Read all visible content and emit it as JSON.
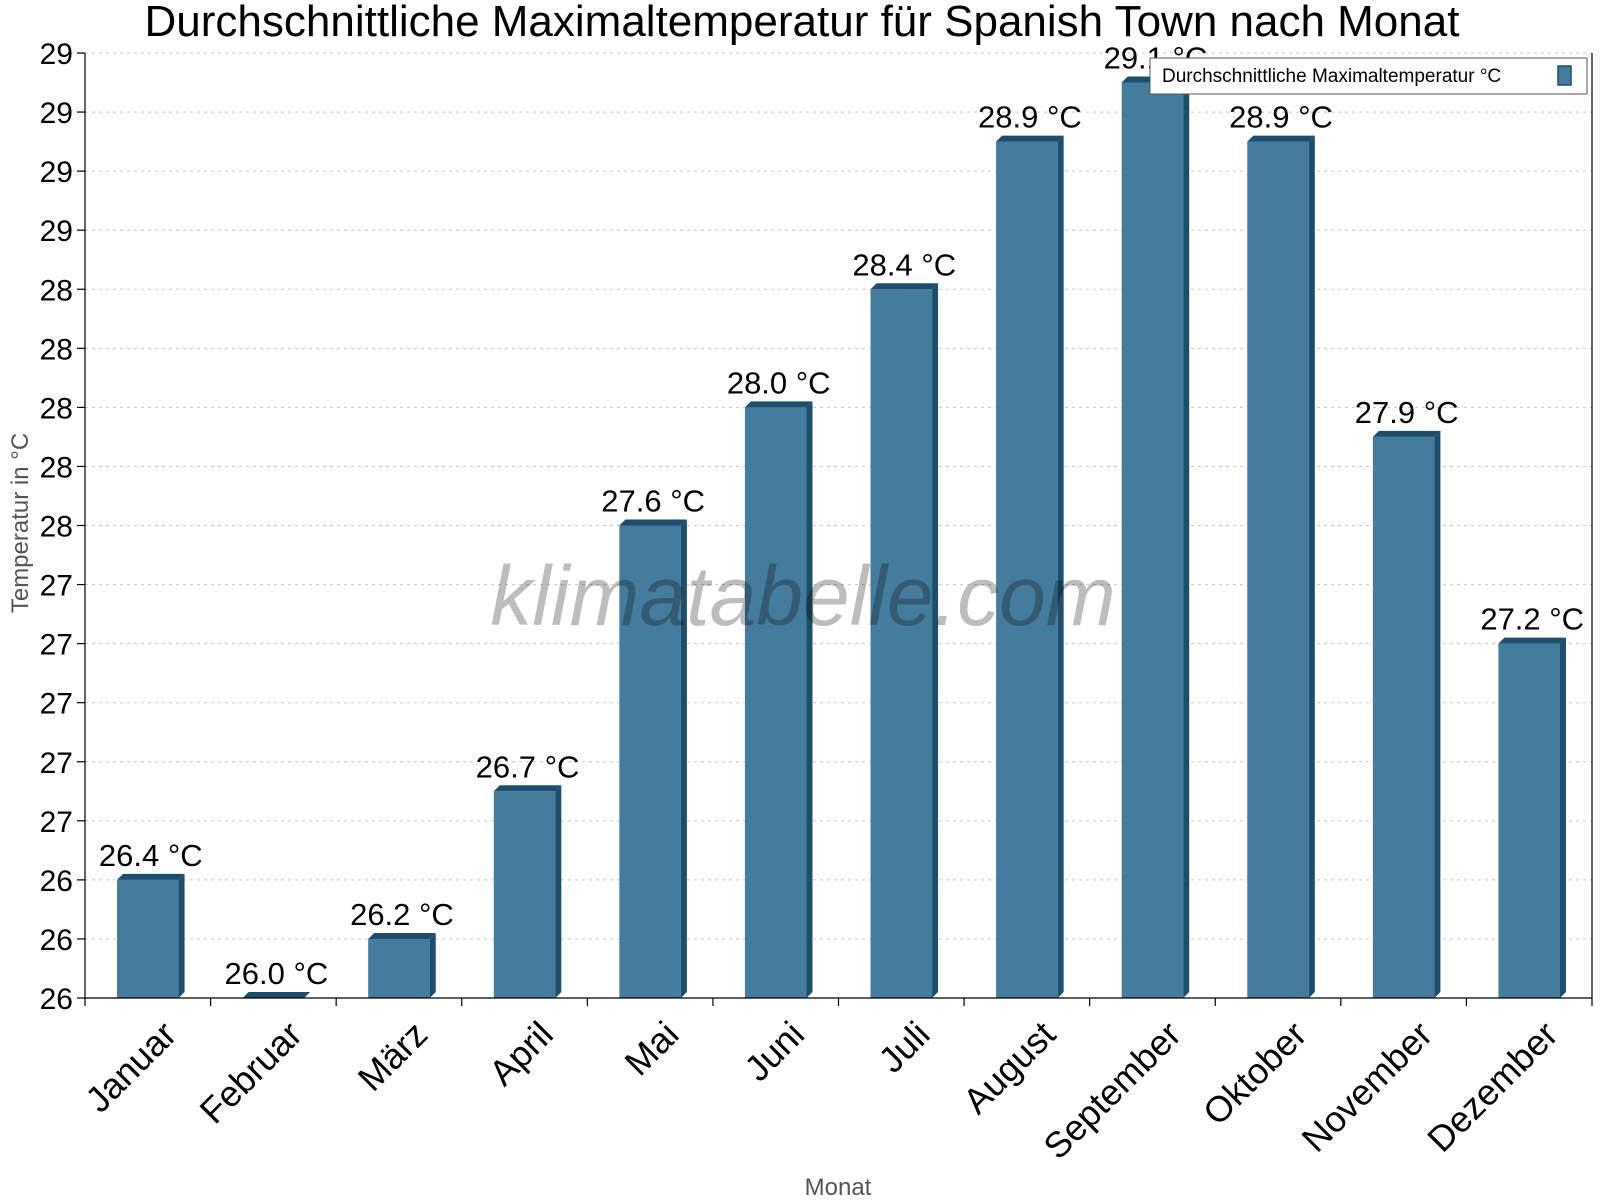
{
  "chart_data": {
    "type": "bar",
    "title": "Durchschnittliche Maximaltemperatur für Spanish Town nach Monat",
    "xlabel": "Monat",
    "ylabel": "Temperatur in °C",
    "categories": [
      "Januar",
      "Februar",
      "März",
      "April",
      "Mai",
      "Juni",
      "Juli",
      "August",
      "September",
      "Oktober",
      "November",
      "Dezember"
    ],
    "series": [
      {
        "name": "Durchschnittliche Maximaltemperatur °C",
        "values": [
          26.4,
          26.0,
          26.2,
          26.7,
          27.6,
          28.0,
          28.4,
          28.9,
          29.1,
          28.9,
          27.9,
          27.2
        ],
        "labels": [
          "26.4 °C",
          "26.0 °C",
          "26.2 °C",
          "26.7 °C",
          "27.6 °C",
          "28.0 °C",
          "28.4 °C",
          "28.9 °C",
          "29.1 °C",
          "28.9 °C",
          "27.9 °C",
          "27.2 °C"
        ]
      }
    ],
    "ylim": [
      26.0,
      29.2
    ],
    "yticks": [
      26.0,
      26.2,
      26.4,
      26.6,
      26.8,
      27.0,
      27.2,
      27.4,
      27.6,
      27.8,
      28.0,
      28.2,
      28.4,
      28.6,
      28.8,
      29.0,
      29.2
    ],
    "ytick_labels": [
      "26",
      "26",
      "26",
      "27",
      "27",
      "27",
      "27",
      "27",
      "28",
      "28",
      "28",
      "28",
      "28",
      "29",
      "29",
      "29",
      "29"
    ],
    "grid": true,
    "legend_position": "top-right",
    "bar_color": "#457b9d",
    "bar_edge_color": "#1d4e6e",
    "watermark": "klimatabelle.com"
  }
}
